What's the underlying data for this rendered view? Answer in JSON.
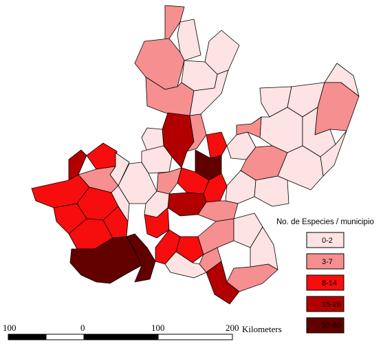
{
  "colors": {
    "class_0_2": "#fde3e3",
    "class_3_7": "#f68f8f",
    "class_8_14": "#f70d0d",
    "class_15_26": "#b20000",
    "class_27_60": "#620000",
    "border": "#000000",
    "background": "#ffffff"
  },
  "legend": {
    "title": "No. de Especies / municipio",
    "items": [
      {
        "label": "0-2",
        "color": "#fde3e3"
      },
      {
        "label": "3-7",
        "color": "#f68f8f"
      },
      {
        "label": "8-14",
        "color": "#f70d0d"
      },
      {
        "label": "15-26",
        "color": "#b20000"
      },
      {
        "label": "27-60",
        "color": "#620000"
      }
    ]
  },
  "scale_bar": {
    "ticks": [
      "100",
      "0",
      "100",
      "200"
    ],
    "unit": "Kilometers"
  }
}
